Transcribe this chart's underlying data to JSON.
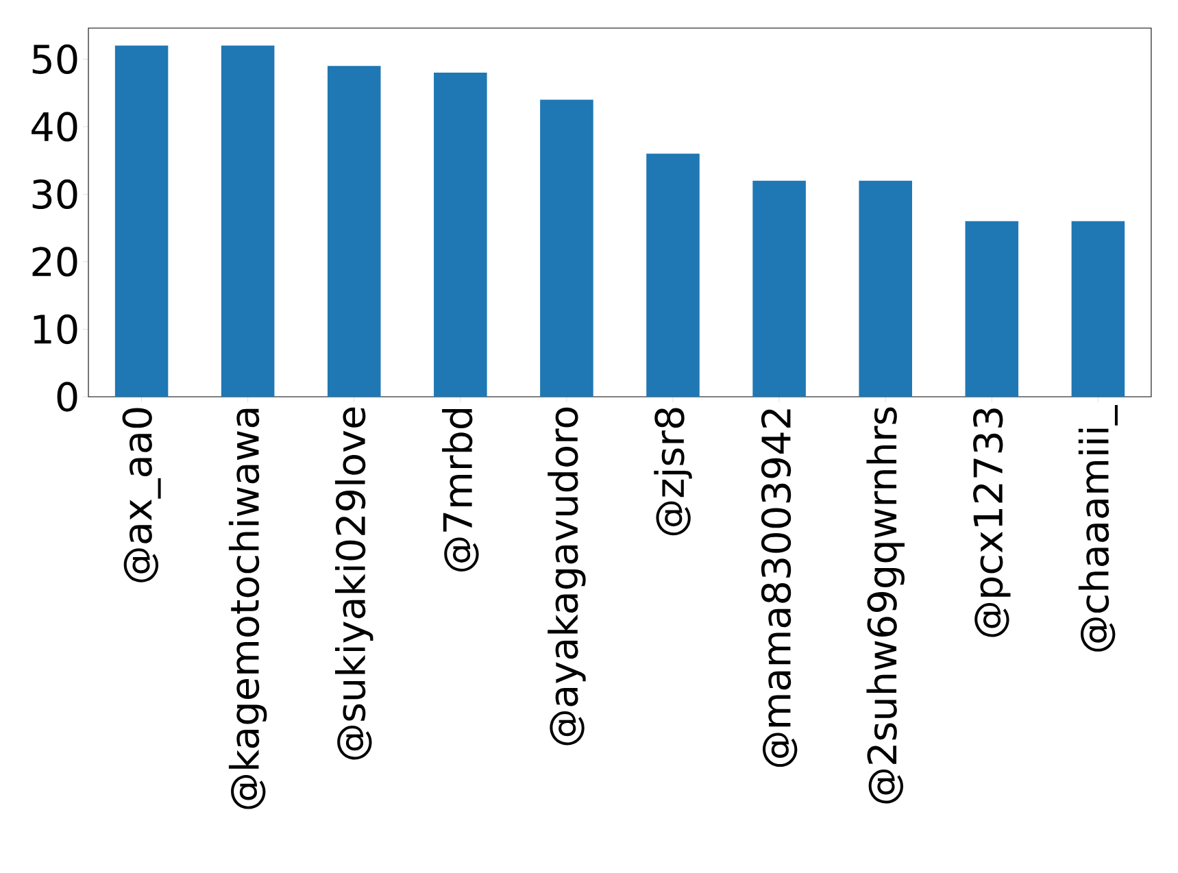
{
  "chart_data": {
    "type": "bar",
    "categories": [
      "@ax_aa0",
      "@kagemotochiwawa",
      "@sukiyaki029love",
      "@7mrbd",
      "@ayakagavudoro",
      "@zjsr8",
      "@mama83003942",
      "@2suhw69gqwrnhrs",
      "@pcx12733",
      "@chaaamiii_"
    ],
    "values": [
      52,
      52,
      49,
      48,
      44,
      36,
      32,
      32,
      26,
      26
    ],
    "color": "#1f77b4",
    "ylim": [
      0,
      54.6
    ],
    "yticks": [
      0,
      10,
      20,
      30,
      40,
      50
    ]
  }
}
